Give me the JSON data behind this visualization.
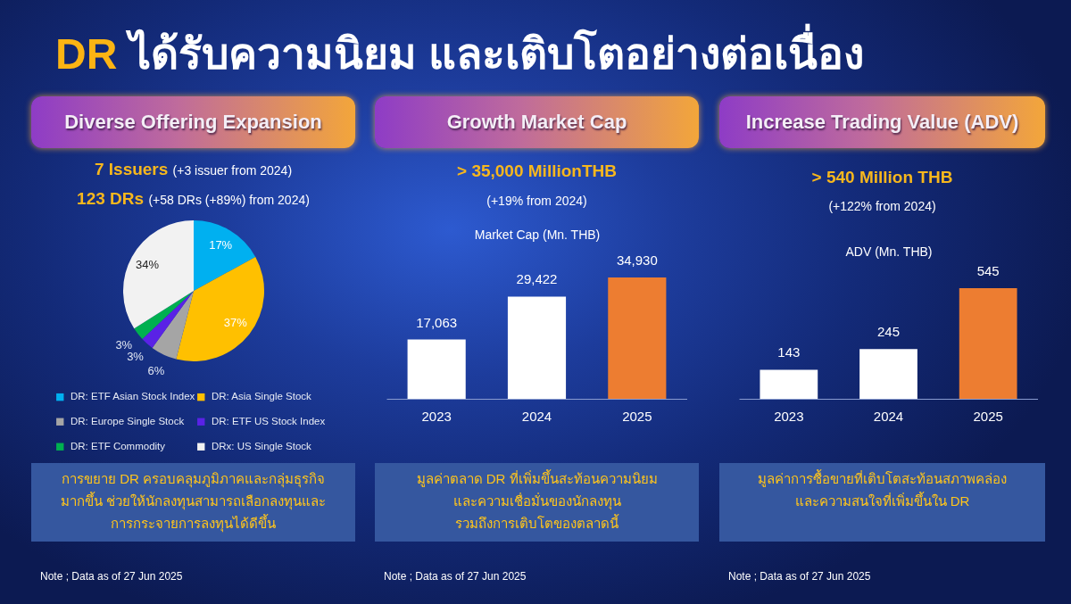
{
  "chart_data": [
    {
      "type": "other",
      "title": "DR ได้รับความนิยม และเติบโตอย่างต่อเนื่อง"
    },
    {
      "type": "pie",
      "title": "Diverse Offering Expansion",
      "subtitle": "7 Issuers (+3 issuer from 2024)\n123 DRs (+58 DRs (+89%) from 2024)",
      "categories": [
        "DR: ETF Asian Stock Index",
        "DR: Asia Single Stock",
        "DR: Europe Single Stock",
        "DR: ETF US Stock Index",
        "DR: ETF Commodity",
        "DRx: US Single Stock"
      ],
      "values": [
        17,
        37,
        6,
        3,
        3,
        34
      ],
      "colors": [
        "#00b0f0",
        "#ffc000",
        "#a5a5a5",
        "#5a22e6",
        "#00b050",
        "#f2f2f2"
      ],
      "value_labels": [
        "17%",
        "37%",
        "6%",
        "3%",
        "3%",
        "34%"
      ],
      "legend": "bottom",
      "annotations": [
        "การขยาย DR ครอบคลุมภูมิภาคและกลุ่มธุรกิจ\nมากขึ้น ช่วยให้นักลงทุนสามารถเลือกลงทุนและ\nการกระจายการลงทุนได้ดีขึ้น",
        "Note ; Data as of 27 Jun 2025"
      ]
    },
    {
      "type": "bar",
      "title": "Growth Market Cap",
      "subtitle": "> 35,000 MillionTHB\n(+19% from 2024)",
      "ylabel": "Market Cap (Mn. THB)",
      "categories": [
        "2023",
        "2024",
        "2025"
      ],
      "values": [
        17063,
        29422,
        34930
      ],
      "colors": [
        "#ffffff",
        "#ffffff",
        "#ed7d31"
      ],
      "value_labels": [
        "17,063",
        "29,422",
        "34,930"
      ],
      "annotations": [
        "มูลค่าตลาด DR ที่เพิ่มขึ้นสะท้อนความนิยม\nและความเชื่อมั่นของนักลงทุน\nรวมถึงการเติบโตของตลาดนี้",
        "Note ; Data as of 27 Jun 2025"
      ]
    },
    {
      "type": "bar",
      "title": "Increase Trading Value (ADV)",
      "subtitle": "> 540 Million THB\n(+122% from 2024)",
      "ylabel": "ADV (Mn. THB)",
      "categories": [
        "2023",
        "2024",
        "2025"
      ],
      "values": [
        143,
        245,
        545
      ],
      "colors": [
        "#ffffff",
        "#ffffff",
        "#ed7d31"
      ],
      "data_labels": true,
      "annotations": [
        "มูลค่าการซื้อขายที่เติบโตสะท้อนสภาพคล่อง\nและความสนใจที่เพิ่มขึ้นใน DR",
        "Note ; Data as of 27 Jun 2025"
      ]
    }
  ]
}
